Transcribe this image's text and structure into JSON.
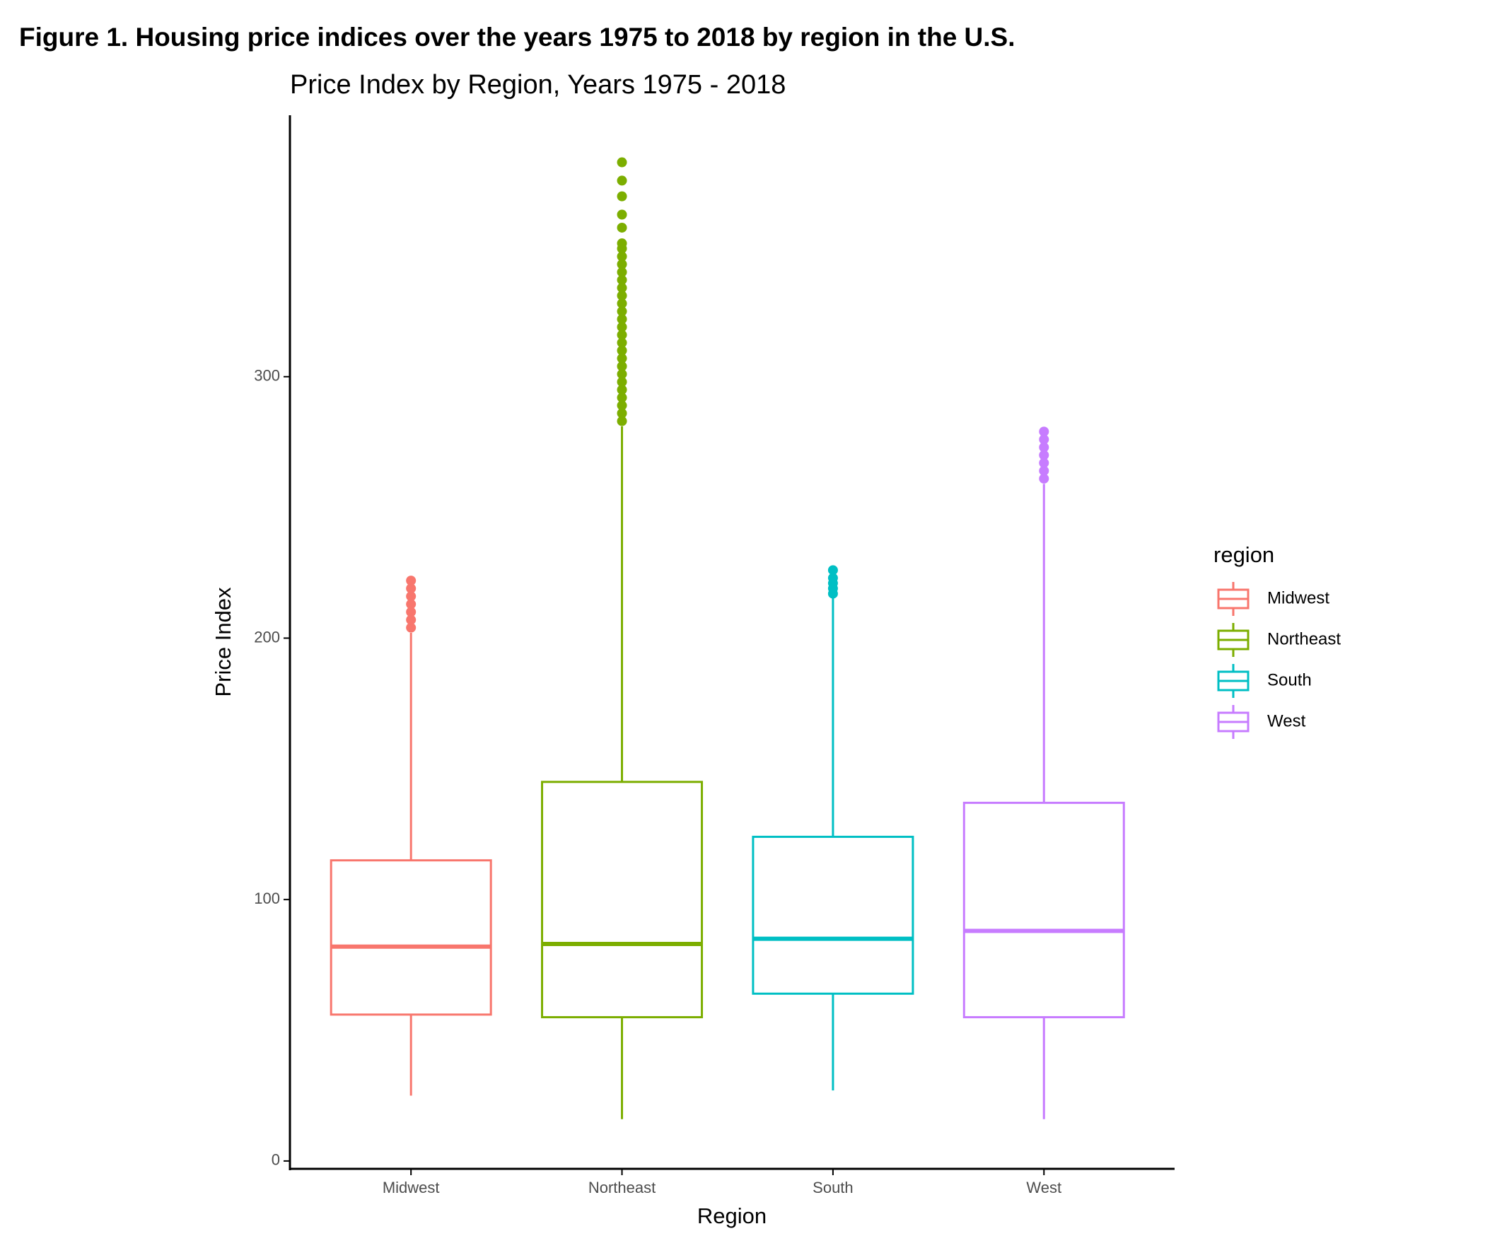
{
  "chart_data": {
    "type": "boxplot",
    "title": "Figure 1. Housing price indices over the years 1975 to 2018 by region in the U.S.",
    "subtitle": "Price Index by Region, Years 1975 - 2018",
    "x_label": "Region",
    "y_label": "Price Index",
    "legend_title": "region",
    "categories": [
      "Midwest",
      "Northeast",
      "South",
      "West"
    ],
    "colors": [
      "#F8766D",
      "#7CAE00",
      "#00BFC4",
      "#C77CFF"
    ],
    "ylim": [
      -3,
      400
    ],
    "yticks": [
      0,
      100,
      200,
      300
    ],
    "boxes": [
      {
        "whisker_low": 25,
        "q1": 56,
        "median": 82,
        "q3": 115,
        "whisker_high": 202,
        "outliers": [
          204,
          207,
          210,
          213,
          216,
          219,
          222
        ]
      },
      {
        "whisker_low": 16,
        "q1": 55,
        "median": 83,
        "q3": 145,
        "whisker_high": 281,
        "outliers": [
          283,
          286,
          289,
          292,
          295,
          298,
          301,
          304,
          307,
          310,
          313,
          316,
          319,
          322,
          325,
          328,
          331,
          334,
          337,
          340,
          343,
          346,
          349,
          351,
          357,
          362,
          369,
          375,
          382
        ]
      },
      {
        "whisker_low": 27,
        "q1": 64,
        "median": 85,
        "q3": 124,
        "whisker_high": 216,
        "outliers": [
          217,
          219,
          221,
          223,
          226
        ]
      },
      {
        "whisker_low": 16,
        "q1": 55,
        "median": 88,
        "q3": 137,
        "whisker_high": 259,
        "outliers": [
          261,
          264,
          267,
          270,
          273,
          276,
          279
        ]
      }
    ]
  }
}
